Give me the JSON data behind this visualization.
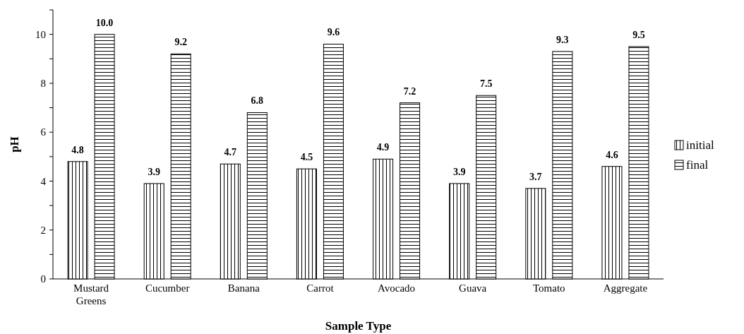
{
  "chart_data": {
    "type": "bar",
    "xlabel": "Sample Type",
    "ylabel": "pH",
    "categories": [
      "Mustard Greens",
      "Cucumber",
      "Banana",
      "Carrot",
      "Avocado",
      "Guava",
      "Tomato",
      "Aggregate"
    ],
    "series": [
      {
        "name": "initial",
        "color": "#000000",
        "values": [
          4.8,
          3.9,
          4.7,
          4.5,
          4.9,
          3.9,
          3.7,
          4.6
        ],
        "value_labels": [
          "4.8",
          "3.9",
          "4.7",
          "4.5",
          "4.9",
          "3.9",
          "3.7",
          "4.6"
        ]
      },
      {
        "name": "final",
        "color": "#000000",
        "values": [
          10.0,
          9.2,
          6.8,
          9.6,
          7.2,
          7.5,
          9.3,
          9.5
        ],
        "value_labels": [
          "10.0",
          "9.2",
          "6.8",
          "9.6",
          "7.2",
          "7.5",
          "9.3",
          "9.5"
        ]
      }
    ],
    "ylim": [
      0,
      11
    ],
    "yticks": [
      0,
      {
        "value": 1,
        "label": null
      },
      2,
      {
        "value": 3,
        "label": null
      },
      4,
      {
        "value": 5,
        "label": null
      },
      6,
      {
        "value": 7,
        "label": null
      },
      8,
      {
        "value": 9,
        "label": null
      },
      10,
      {
        "value": 11,
        "label": null
      }
    ],
    "legend": "right",
    "grid": false
  }
}
